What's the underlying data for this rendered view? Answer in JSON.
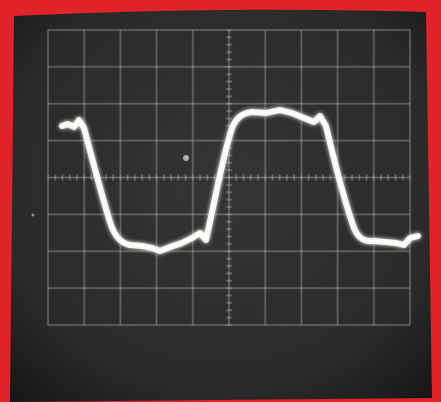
{
  "photo": {
    "subject": "oscilloscope-screen",
    "colors": {
      "border": "#e0242a",
      "screen": "#2b2b2b",
      "screen_edge": "#1a1a1a",
      "grid": "#d8d8d8",
      "trace": "#f4f4f0",
      "trace_glow": "#ffffff"
    },
    "graticule": {
      "divisions_x": 10,
      "divisions_y": 8
    }
  }
}
